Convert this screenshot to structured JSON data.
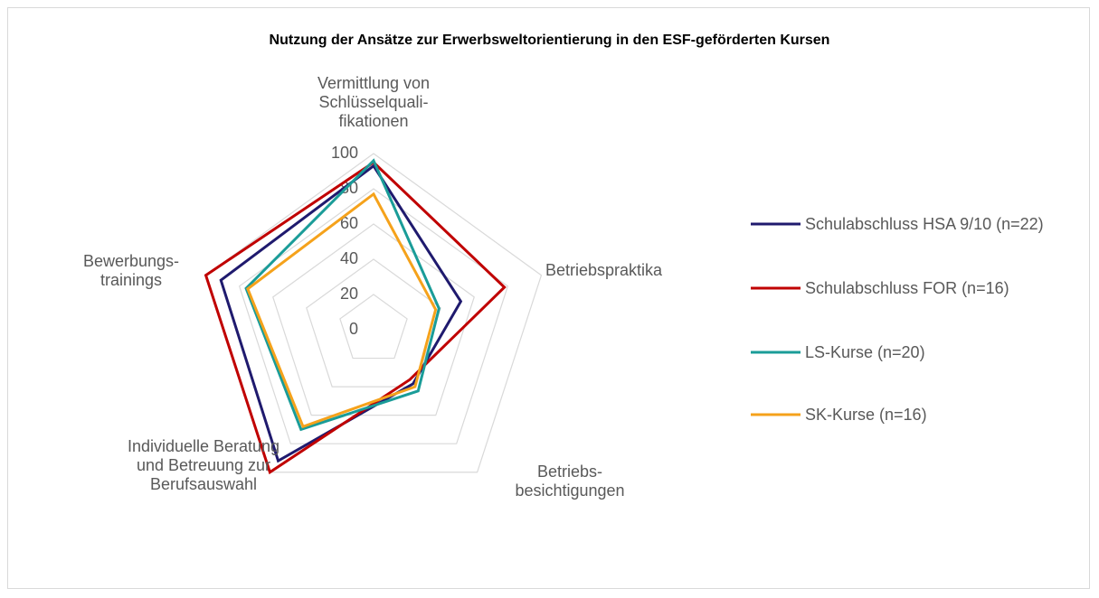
{
  "chart_data": {
    "type": "radar",
    "title": "Nutzung der Ansätze zur Erwerbsweltorientierung in den ESF-geförderten Kursen",
    "categories": [
      "Vermittlung von Schlüsselquali-fikationen",
      "Betriebspraktika",
      "Betriebs-besichtigungen",
      "Individuelle Beratung und Betreuung zur Berufsauswahl",
      "Bewerbungs-trainings"
    ],
    "series": [
      {
        "name": "Schulabschluss HSA 9/10 (n=22)",
        "color": "#1f1a6e",
        "values": [
          93,
          52,
          38,
          92,
          91
        ]
      },
      {
        "name": "Schulabschluss FOR (n=16)",
        "color": "#c00000",
        "values": [
          95,
          78,
          35,
          100,
          100
        ]
      },
      {
        "name": "LS-Kurse (n=20)",
        "color": "#1a9c98",
        "values": [
          96,
          39,
          43,
          70,
          76
        ]
      },
      {
        "name": "SK-Kurse (n=16)",
        "color": "#f5a21b",
        "values": [
          77,
          37,
          40,
          68,
          75
        ]
      }
    ],
    "ylim": [
      0,
      100
    ],
    "yticks": [
      0,
      20,
      40,
      60,
      80,
      100
    ],
    "grid": true,
    "legend": "right"
  }
}
